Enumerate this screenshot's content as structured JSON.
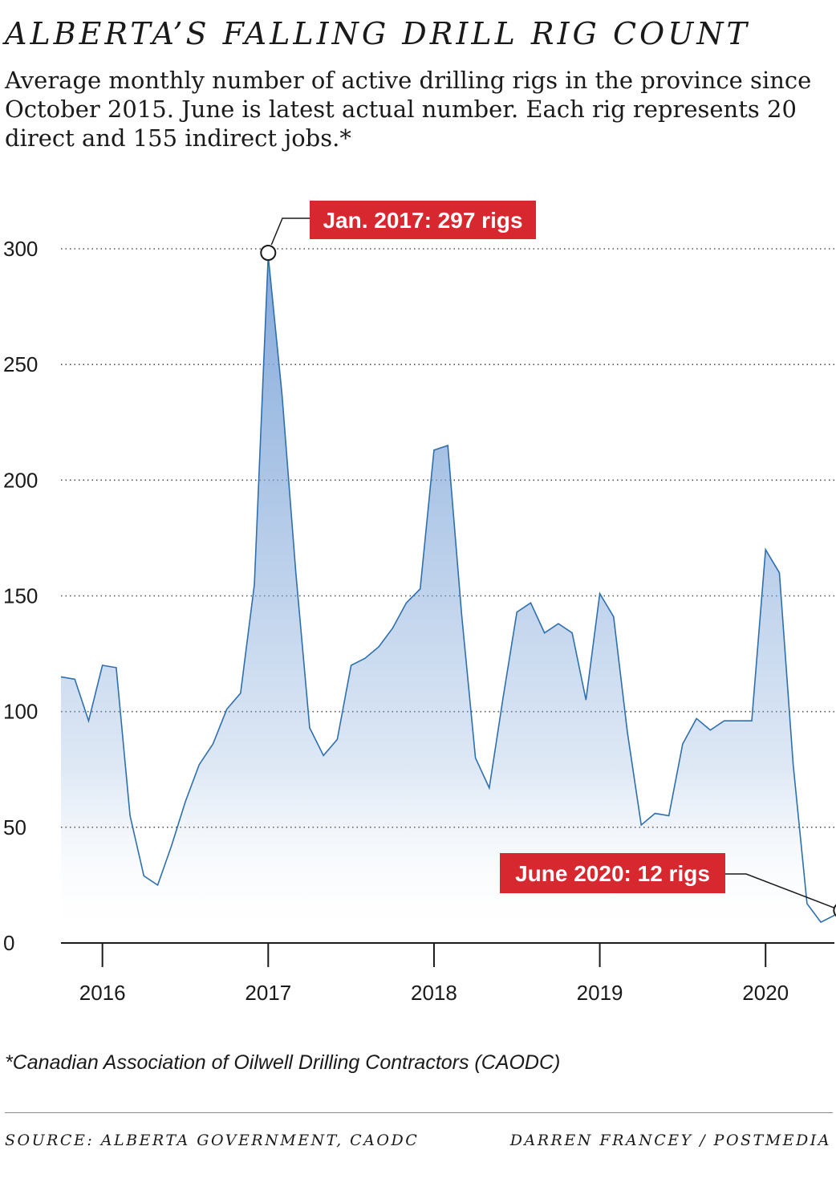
{
  "header": {
    "title": "ALBERTA’S FALLING DRILL RIG COUNT",
    "subtitle": "Average monthly number of active drilling rigs in the province since October 2015. June is latest actual number. Each rig represents 20 direct and 155 indirect jobs.*"
  },
  "footer": {
    "footnote": "*Canadian Association of Oilwell Drilling Contractors (CAODC)",
    "source": "SOURCE: ALBERTA GOVERNMENT, CAODC",
    "credit": "DARREN FRANCEY / POSTMEDIA"
  },
  "colors": {
    "line": "#2e6fae",
    "fill_top": "#7fa6d9",
    "fill_bottom": "#ffffff",
    "callout": "#d7282f",
    "grid": "#555555"
  },
  "chart_data": {
    "type": "area",
    "title": "ALBERTA’S FALLING DRILL RIG COUNT",
    "xlabel": "",
    "ylabel": "",
    "ylim": [
      0,
      300
    ],
    "yticks": [
      0,
      50,
      100,
      150,
      200,
      250,
      300
    ],
    "ytick_labels": [
      "0",
      "50",
      "100",
      "150",
      "200",
      "250",
      "300"
    ],
    "xticks": [
      {
        "date": "2016-01",
        "label": "2016"
      },
      {
        "date": "2017-01",
        "label": "2017"
      },
      {
        "date": "2018-01",
        "label": "2018"
      },
      {
        "date": "2019-01",
        "label": "2019"
      },
      {
        "date": "2020-01",
        "label": "2020"
      }
    ],
    "grid": "horizontal dotted",
    "series": [
      {
        "x": [
          "2015-10",
          "2015-11",
          "2015-12",
          "2016-01",
          "2016-02",
          "2016-03",
          "2016-04",
          "2016-05",
          "2016-06",
          "2016-07",
          "2016-08",
          "2016-09",
          "2016-10",
          "2016-11",
          "2016-12",
          "2017-01",
          "2017-02",
          "2017-03",
          "2017-04",
          "2017-05",
          "2017-06",
          "2017-07",
          "2017-08",
          "2017-09",
          "2017-10",
          "2017-11",
          "2017-12",
          "2018-01",
          "2018-02",
          "2018-03",
          "2018-04",
          "2018-05",
          "2018-06",
          "2018-07",
          "2018-08",
          "2018-09",
          "2018-10",
          "2018-11",
          "2018-12",
          "2019-01",
          "2019-02",
          "2019-03",
          "2019-04",
          "2019-05",
          "2019-06",
          "2019-07",
          "2019-08",
          "2019-09",
          "2019-10",
          "2019-11",
          "2019-12",
          "2020-01",
          "2020-02",
          "2020-03",
          "2020-04",
          "2020-05",
          "2020-06"
        ],
        "values": [
          115,
          114,
          96,
          120,
          119,
          55,
          29,
          25,
          42,
          61,
          77,
          86,
          101,
          108,
          155,
          297,
          237,
          160,
          93,
          81,
          88,
          120,
          123,
          128,
          136,
          147,
          153,
          213,
          215,
          142,
          80,
          67,
          106,
          143,
          147,
          134,
          138,
          134,
          105,
          151,
          141,
          91,
          51,
          56,
          55,
          86,
          97,
          92,
          96,
          96,
          96,
          170,
          160,
          77,
          17,
          9,
          12
        ]
      }
    ],
    "annotations": [
      {
        "date": "2017-01",
        "value": 297,
        "text": "Jan. 2017: 297 rigs"
      },
      {
        "date": "2020-06",
        "value": 12,
        "text": "June 2020: 12 rigs"
      }
    ]
  }
}
